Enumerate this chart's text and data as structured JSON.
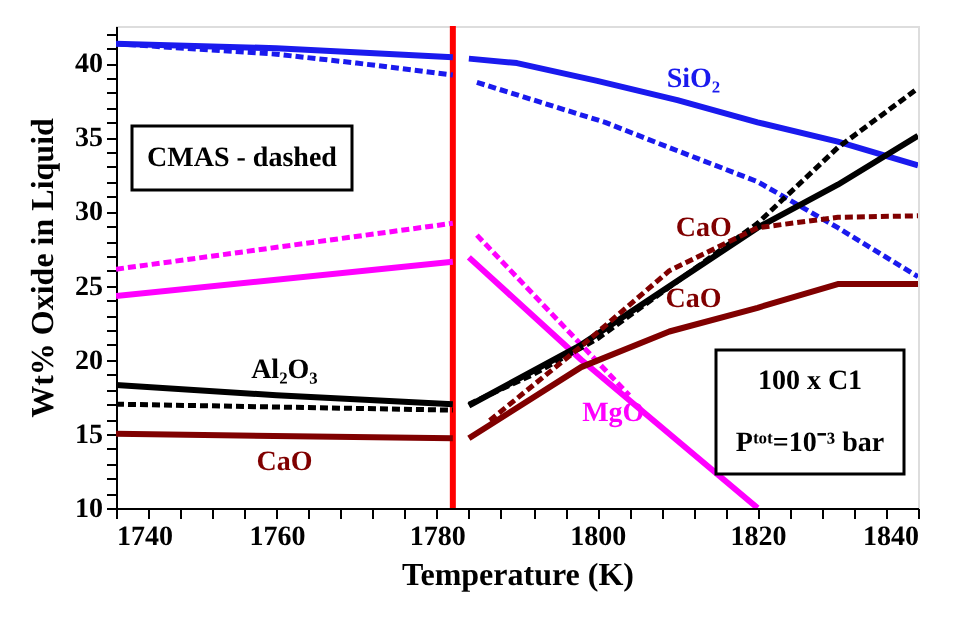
{
  "chart_data": {
    "type": "line",
    "xlabel": "Temperature (K)",
    "ylabel": "Wt% Oxide in Liquid",
    "xlim": [
      1740,
      1840
    ],
    "ylim": [
      10,
      42.5
    ],
    "xticks": [
      1740,
      {
        "value": 1744,
        "label": null
      },
      {
        "value": 1748,
        "label": null
      },
      {
        "value": 1752,
        "label": null
      },
      {
        "value": 1756,
        "label": null
      },
      1760,
      {
        "value": 1764,
        "label": null
      },
      {
        "value": 1768,
        "label": null
      },
      {
        "value": 1772,
        "label": null
      },
      {
        "value": 1776,
        "label": null
      },
      1780,
      {
        "value": 1784,
        "label": null
      },
      {
        "value": 1788,
        "label": null
      },
      {
        "value": 1792,
        "label": null
      },
      {
        "value": 1796,
        "label": null
      },
      1800,
      {
        "value": 1804,
        "label": null
      },
      {
        "value": 1808,
        "label": null
      },
      {
        "value": 1812,
        "label": null
      },
      {
        "value": 1816,
        "label": null
      },
      1820,
      {
        "value": 1824,
        "label": null
      },
      {
        "value": 1828,
        "label": null
      },
      {
        "value": 1832,
        "label": null
      },
      {
        "value": 1836,
        "label": null
      },
      1840
    ],
    "yticks": [
      10,
      {
        "value": 11,
        "label": null
      },
      {
        "value": 12,
        "label": null
      },
      {
        "value": 13,
        "label": null
      },
      {
        "value": 14,
        "label": null
      },
      15,
      {
        "value": 16,
        "label": null
      },
      {
        "value": 17,
        "label": null
      },
      {
        "value": 18,
        "label": null
      },
      {
        "value": 19,
        "label": null
      },
      20,
      {
        "value": 21,
        "label": null
      },
      {
        "value": 22,
        "label": null
      },
      {
        "value": 23,
        "label": null
      },
      {
        "value": 24,
        "label": null
      },
      25,
      {
        "value": 26,
        "label": null
      },
      {
        "value": 27,
        "label": null
      },
      {
        "value": 28,
        "label": null
      },
      {
        "value": 29,
        "label": null
      },
      30,
      {
        "value": 31,
        "label": null
      },
      {
        "value": 32,
        "label": null
      },
      {
        "value": 33,
        "label": null
      },
      {
        "value": 34,
        "label": null
      },
      35,
      {
        "value": 36,
        "label": null
      },
      {
        "value": 37,
        "label": null
      },
      {
        "value": 38,
        "label": null
      },
      {
        "value": 39,
        "label": null
      },
      40,
      {
        "value": 41,
        "label": null
      },
      {
        "value": 42,
        "label": null
      }
    ],
    "grid": false,
    "marker": "none",
    "series": [
      {
        "color": "#1a1aee",
        "line_style": "solid",
        "x": [
          1740,
          1760,
          1782
        ],
        "values": [
          41.3,
          41.0,
          40.4
        ]
      },
      {
        "name": "SiO₂",
        "color": "#1a1aee",
        "line_style": "solid",
        "x": [
          1784,
          1790,
          1800,
          1810,
          1820,
          1830,
          1840
        ],
        "values": [
          40.3,
          40.0,
          38.8,
          37.5,
          36.0,
          34.7,
          33.1
        ]
      },
      {
        "color": "#1a1aee",
        "line_style": "dashed",
        "x": [
          1740,
          1760,
          1770,
          1782
        ],
        "values": [
          41.3,
          40.6,
          40.0,
          39.2
        ]
      },
      {
        "color": "#1a1aee",
        "line_style": "dashed",
        "x": [
          1785,
          1801,
          1809,
          1820,
          1830,
          1840
        ],
        "values": [
          38.7,
          36.0,
          34.3,
          32.0,
          28.9,
          25.6
        ]
      },
      {
        "color": "#ff00ff",
        "line_style": "solid",
        "x": [
          1740,
          1782
        ],
        "values": [
          24.3,
          26.6
        ]
      },
      {
        "name": "MgO",
        "color": "#ff00ff",
        "line_style": "solid",
        "x": [
          1784,
          1798,
          1820
        ],
        "values": [
          26.9,
          20.0,
          10.0
        ]
      },
      {
        "color": "#ff00ff",
        "line_style": "dashed",
        "x": [
          1740,
          1782
        ],
        "values": [
          26.1,
          29.2
        ]
      },
      {
        "color": "#ff00ff",
        "line_style": "dashed",
        "x": [
          1785,
          1804
        ],
        "values": [
          28.4,
          17.6
        ]
      },
      {
        "name": "Al₂O₃",
        "color": "#000000",
        "line_style": "solid",
        "x": [
          1740,
          1760,
          1782
        ],
        "values": [
          18.3,
          17.6,
          17.0
        ]
      },
      {
        "color": "#000000",
        "line_style": "solid",
        "x": [
          1784,
          1798,
          1820,
          1830,
          1840
        ],
        "values": [
          16.9,
          21.0,
          28.9,
          31.8,
          35.1
        ]
      },
      {
        "color": "#000000",
        "line_style": "dashed",
        "x": [
          1740,
          1782
        ],
        "values": [
          17.0,
          16.6
        ]
      },
      {
        "color": "#000000",
        "line_style": "dashed",
        "x": [
          1784,
          1792,
          1800,
          1809,
          1820,
          1830,
          1840
        ],
        "values": [
          17.0,
          19.0,
          21.4,
          24.9,
          29.2,
          34.3,
          38.3
        ]
      },
      {
        "name": "CaO",
        "color": "#800000",
        "line_style": "solid",
        "x": [
          1740,
          1782
        ],
        "values": [
          15.0,
          14.7
        ]
      },
      {
        "name": "CaO",
        "color": "#800000",
        "line_style": "solid",
        "x": [
          1784,
          1798,
          1809,
          1820,
          1830,
          1840
        ],
        "values": [
          14.7,
          19.5,
          21.9,
          23.5,
          25.1,
          25.1
        ]
      },
      {
        "name": "CaO",
        "color": "#800000",
        "line_style": "dashed",
        "x": [
          1786.6,
          1798,
          1809,
          1820,
          1830,
          1840
        ],
        "values": [
          15.9,
          20.9,
          26.0,
          28.9,
          29.6,
          29.7
        ]
      }
    ],
    "ref_lines": [
      {
        "axis": "x",
        "value": 1782,
        "color": "#ff0000"
      }
    ],
    "annotations": [
      "CMAS - dashed",
      "100 x C1",
      "Pᵗᵒᵗ=10⁻³ bar"
    ]
  }
}
